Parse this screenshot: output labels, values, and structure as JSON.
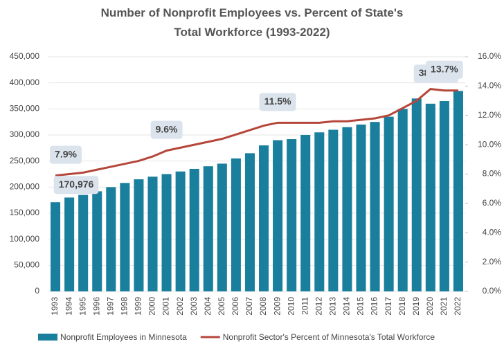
{
  "chart_data": {
    "type": "bar_line",
    "title": "Number of Nonprofit Employees vs. Percent of State's Total Workforce (1993-2022)",
    "categories": [
      "1993",
      "1994",
      "1995",
      "1996",
      "1997",
      "1998",
      "1999",
      "2000",
      "2001",
      "2002",
      "2003",
      "2004",
      "2005",
      "2006",
      "2007",
      "2008",
      "2009",
      "2010",
      "2011",
      "2012",
      "2013",
      "2014",
      "2015",
      "2016",
      "2017",
      "2018",
      "2019",
      "2020",
      "2021",
      "2022"
    ],
    "series": [
      {
        "name": "Nonprofit Employees in Minnesota",
        "color": "#1a7f9c",
        "axis": "y",
        "values": [
          170976,
          180000,
          185000,
          192000,
          200000,
          208000,
          215000,
          220000,
          225000,
          230000,
          235000,
          240000,
          245000,
          255000,
          265000,
          280000,
          290000,
          292000,
          300000,
          305000,
          310000,
          315000,
          320000,
          325000,
          335000,
          350000,
          370000,
          360000,
          365000,
          384417
        ],
        "value_labels": [
          "170,976",
          null,
          null,
          null,
          null,
          null,
          null,
          null,
          null,
          null,
          null,
          null,
          null,
          null,
          null,
          null,
          null,
          null,
          null,
          null,
          null,
          null,
          null,
          null,
          null,
          null,
          null,
          null,
          null,
          "384,417"
        ]
      },
      {
        "name": "Nonprofit Sector's Percent of Minnesota's Total Workforce",
        "color": "#b5463a",
        "axis": "y2",
        "values": [
          7.9,
          8.0,
          8.1,
          8.3,
          8.5,
          8.7,
          8.9,
          9.2,
          9.6,
          9.8,
          10.0,
          10.2,
          10.4,
          10.7,
          11.0,
          11.3,
          11.5,
          11.5,
          11.5,
          11.5,
          11.6,
          11.6,
          11.7,
          11.8,
          12.0,
          12.5,
          13.0,
          13.8,
          13.7,
          13.7
        ],
        "value_labels": [
          "7.9%",
          null,
          null,
          null,
          null,
          null,
          null,
          null,
          "9.6%",
          null,
          null,
          null,
          null,
          null,
          null,
          null,
          "11.5%",
          null,
          null,
          null,
          null,
          null,
          null,
          null,
          null,
          null,
          null,
          null,
          "13.7%",
          null
        ]
      }
    ],
    "ylim": [
      0,
      450000
    ],
    "yticks": [
      0,
      {
        "value": 50000,
        "label": "50,000"
      },
      {
        "value": 100000,
        "label": "100,000"
      },
      {
        "value": 150000,
        "label": "150,000"
      },
      {
        "value": 200000,
        "label": "200,000"
      },
      {
        "value": 250000,
        "label": "250,000"
      },
      {
        "value": 300000,
        "label": "300,000"
      },
      {
        "value": 350000,
        "label": "350,000"
      },
      {
        "value": 400000,
        "label": "400,000"
      },
      {
        "value": 450000,
        "label": "450,000"
      }
    ],
    "y2lim": [
      0,
      16
    ],
    "y2ticks": [
      {
        "value": 0,
        "label": "0.0%"
      },
      {
        "value": 2,
        "label": "2.0%"
      },
      {
        "value": 4,
        "label": "4.0%"
      },
      {
        "value": 6,
        "label": "6.0%"
      },
      {
        "value": 8,
        "label": "8.0%"
      },
      {
        "value": 10,
        "label": "10.0%"
      },
      {
        "value": 12,
        "label": "12.0%"
      },
      {
        "value": 14,
        "label": "14.0%"
      },
      {
        "value": 16,
        "label": "16.0%"
      }
    ]
  }
}
